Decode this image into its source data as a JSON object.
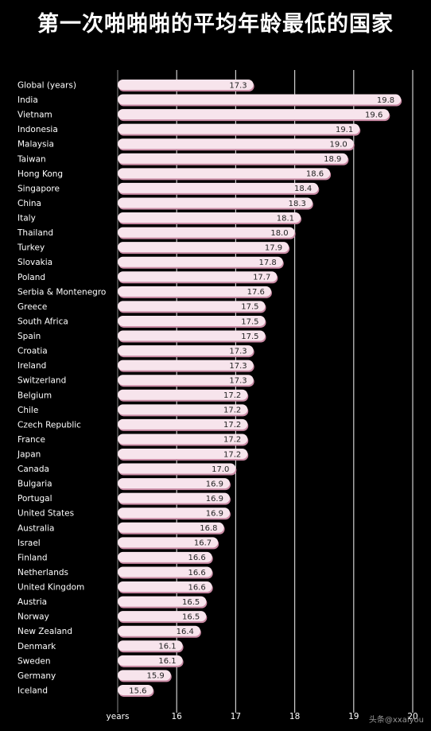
{
  "title": "第一次啪啪啪的平均年龄最低的国家",
  "chart_data": {
    "type": "bar",
    "orientation": "horizontal",
    "categories": [
      "Global (years)",
      "India",
      "Vietnam",
      "Indonesia",
      "Malaysia",
      "Taiwan",
      "Hong Kong",
      "Singapore",
      "China",
      "Italy",
      "Thailand",
      "Turkey",
      "Slovakia",
      "Poland",
      "Serbia & Montenegro",
      "Greece",
      "South Africa",
      "Spain",
      "Croatia",
      "Ireland",
      "Switzerland",
      "Belgium",
      "Chile",
      "Czech Republic",
      "France",
      "Japan",
      "Canada",
      "Bulgaria",
      "Portugal",
      "United States",
      "Australia",
      "Israel",
      "Finland",
      "Netherlands",
      "United Kingdom",
      "Austria",
      "Norway",
      "New Zealand",
      "Denmark",
      "Sweden",
      "Germany",
      "Iceland"
    ],
    "values": [
      17.3,
      19.8,
      19.6,
      19.1,
      19.0,
      18.9,
      18.6,
      18.4,
      18.3,
      18.1,
      18.0,
      17.9,
      17.8,
      17.7,
      17.6,
      17.5,
      17.5,
      17.5,
      17.3,
      17.3,
      17.3,
      17.2,
      17.2,
      17.2,
      17.2,
      17.2,
      17.0,
      16.9,
      16.9,
      16.9,
      16.8,
      16.7,
      16.6,
      16.6,
      16.6,
      16.5,
      16.5,
      16.4,
      16.1,
      16.1,
      15.9,
      15.6
    ],
    "value_labels": [
      "17.3",
      "19.8",
      "19.6",
      "19.1",
      "19.0",
      "18.9",
      "18.6",
      "18.4",
      "18.3",
      "18.1",
      "18.0",
      "17.9",
      "17.8",
      "17.7",
      "17.6",
      "17.5",
      "17.5",
      "17.5",
      "17.3",
      "17.3",
      "17.3",
      "17.2",
      "17.2",
      "17.2",
      "17.2",
      "17.2",
      "17.0",
      "16.9",
      "16.9",
      "16.9",
      "16.8",
      "16.7",
      "16.6",
      "16.6",
      "16.6",
      "16.5",
      "16.5",
      "16.4",
      "16.1",
      "16.1",
      "15.9",
      "15.6"
    ],
    "xlabel": "years",
    "xlim": [
      15,
      20
    ],
    "x_ticks": [
      16,
      17,
      18,
      19,
      20
    ],
    "x_tick_labels": [
      "16",
      "17",
      "18",
      "19",
      "20"
    ],
    "grid": true,
    "bar_color": "#f7e4ec",
    "bar_shadow_color": "#c98aa4",
    "background_color": "#000000",
    "grid_color": "#cfcfcf"
  },
  "watermark": "头条@xxaiyou"
}
